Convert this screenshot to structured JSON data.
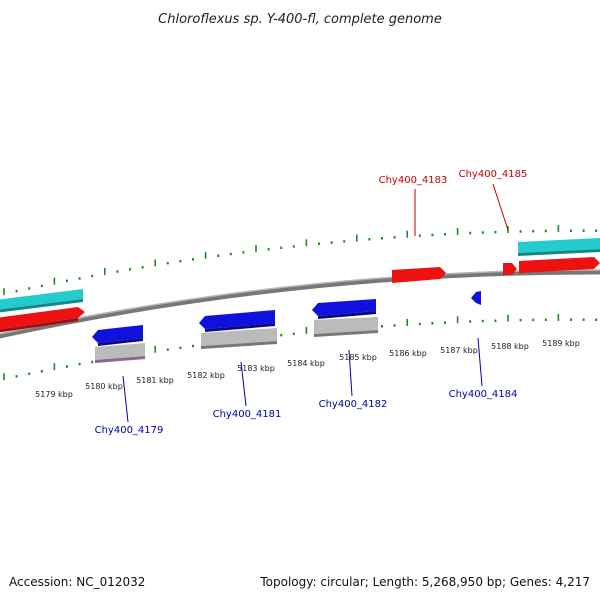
{
  "title": "Chloroflexus sp. Y-400-fl, complete genome",
  "footer": {
    "accession": "Accession: NC_012032",
    "topology": "Topology: circular; Length: 5,268,950 bp; Genes: 4,217"
  },
  "colors": {
    "backbone": "#808080",
    "tick": "#1e8c1e",
    "forward_gene": "#ee1111",
    "reverse_gene": "#1111dd",
    "forward_label": "#cc0000",
    "reverse_label": "#0000aa",
    "cds_feature": "#22cccc",
    "other_feature": "#bbbbbb"
  },
  "axis": {
    "unit": "kbp",
    "tick_labels": [
      "5179 kbp",
      "5180 kbp",
      "5181 kbp",
      "5182 kbp",
      "5183 kbp",
      "5184 kbp",
      "5185 kbp",
      "5186 kbp",
      "5187 kbp",
      "5188 kbp",
      "5189 kbp"
    ]
  },
  "gene_labels": {
    "forward": [
      "Chy400_4183",
      "Chy400_4185"
    ],
    "reverse": [
      "Chy400_4179",
      "Chy400_4181",
      "Chy400_4182",
      "Chy400_4184"
    ]
  }
}
